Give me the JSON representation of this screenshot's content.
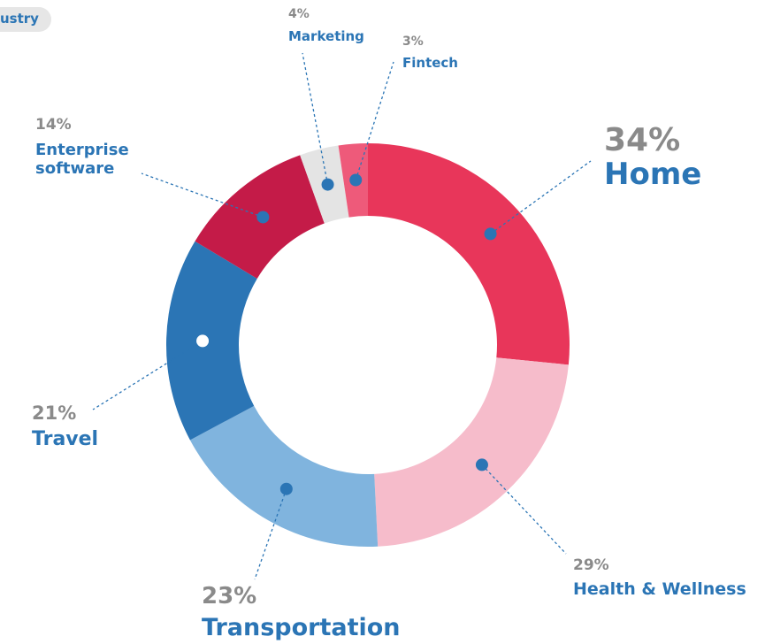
{
  "tag": "ustry",
  "chart_data": {
    "type": "pie",
    "categories": [
      "Home",
      "Health & Wellness",
      "Transportation",
      "Travel",
      "Enterprise software",
      "Marketing",
      "Fintech"
    ],
    "values": [
      34,
      29,
      23,
      21,
      14,
      4,
      3
    ],
    "value_labels": [
      "34%",
      "29%",
      "23%",
      "21%",
      "14%",
      "4%",
      "3%"
    ],
    "colors": [
      "#e8365a",
      "#f6bccb",
      "#80b4de",
      "#2b75b5",
      "#c41b48",
      "#e4e4e4",
      "#ee5a7a"
    ],
    "donut": true
  }
}
